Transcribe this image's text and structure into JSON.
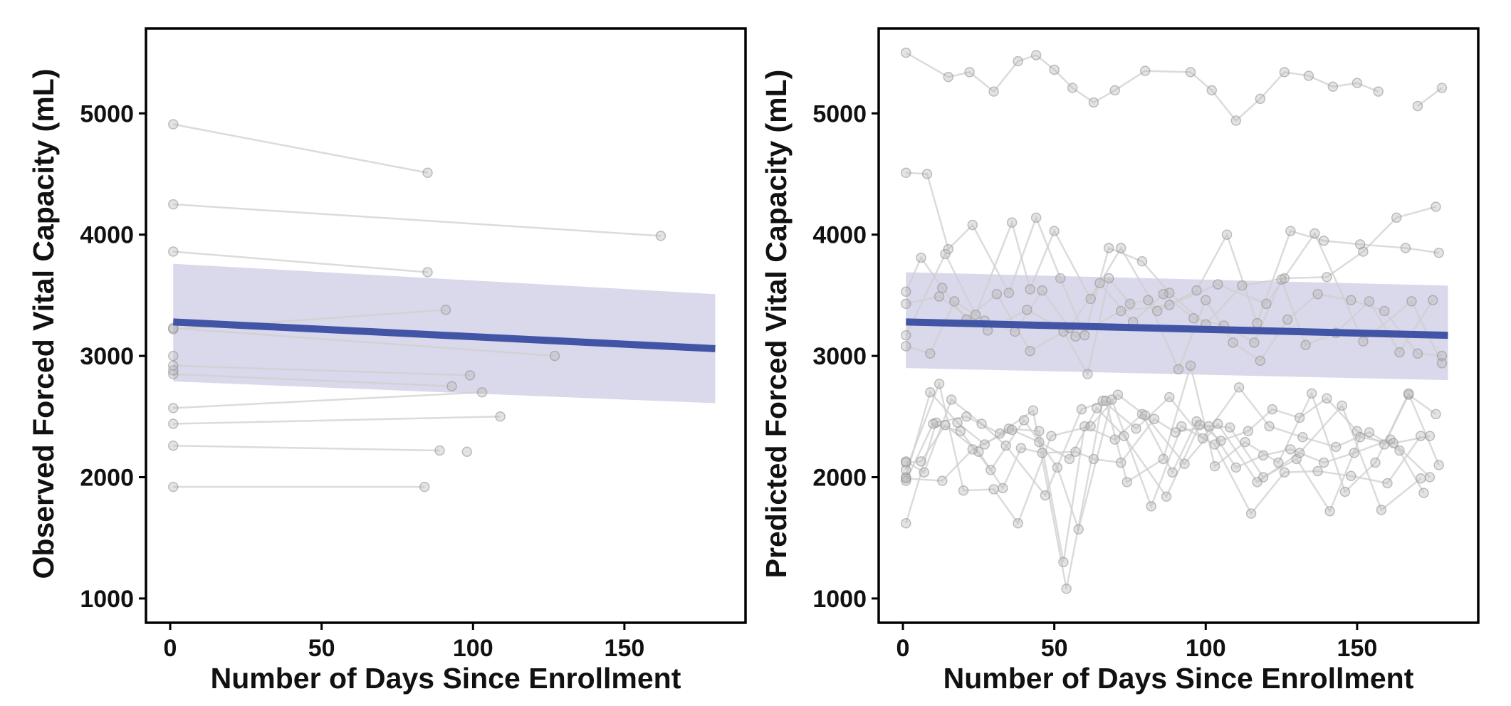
{
  "colors": {
    "trend": "#4254a5",
    "band": "#cfcde6",
    "subject": "#b5b5b5"
  },
  "chart_data": [
    {
      "type": "line",
      "panel": "left",
      "xlabel": "Number of Days Since Enrollment",
      "ylabel": "Observed Forced Vital Capacity (mL)",
      "xlim": [
        -8,
        190
      ],
      "ylim": [
        800,
        5700
      ],
      "xticks": [
        "0",
        "50",
        "100",
        "150"
      ],
      "yticks": [
        "1000",
        "2000",
        "3000",
        "4000",
        "5000"
      ],
      "trend": {
        "x": [
          1,
          180
        ],
        "y": [
          3280,
          3060
        ],
        "lower": [
          2790,
          2610
        ],
        "upper": [
          3760,
          3510
        ]
      },
      "subjects": [
        {
          "x": [
            1,
            85
          ],
          "y": [
            4910,
            4510
          ]
        },
        {
          "x": [
            1,
            162
          ],
          "y": [
            4250,
            3990
          ]
        },
        {
          "x": [
            1,
            85
          ],
          "y": [
            3860,
            3690
          ]
        },
        {
          "x": [
            1,
            91
          ],
          "y": [
            3220,
            3380
          ]
        },
        {
          "x": [
            1,
            127
          ],
          "y": [
            3230,
            3000
          ]
        },
        {
          "x": [
            1,
            99
          ],
          "y": [
            2920,
            2840
          ]
        },
        {
          "x": [
            1,
            93
          ],
          "y": [
            2850,
            2750
          ]
        },
        {
          "x": [
            1,
            103
          ],
          "y": [
            2570,
            2700
          ]
        },
        {
          "x": [
            1,
            109
          ],
          "y": [
            2440,
            2500
          ]
        },
        {
          "x": [
            1,
            89
          ],
          "y": [
            2260,
            2220
          ]
        },
        {
          "x": [
            98
          ],
          "y": [
            2210
          ]
        },
        {
          "x": [
            1,
            84
          ],
          "y": [
            1920,
            1920
          ]
        },
        {
          "x": [
            1
          ],
          "y": [
            3000
          ]
        },
        {
          "x": [
            1
          ],
          "y": [
            2880
          ]
        }
      ]
    },
    {
      "type": "line",
      "panel": "right",
      "xlabel": "Number of Days Since Enrollment",
      "ylabel": "Predicted Forced Vital Capacity (mL)",
      "xlim": [
        -8,
        190
      ],
      "ylim": [
        800,
        5700
      ],
      "xticks": [
        "0",
        "50",
        "100",
        "150"
      ],
      "yticks": [
        "1000",
        "2000",
        "3000",
        "4000",
        "5000"
      ],
      "trend": {
        "x": [
          1,
          180
        ],
        "y": [
          3280,
          3170
        ],
        "lower": [
          2900,
          2800
        ],
        "upper": [
          3690,
          3580
        ]
      },
      "subjects": [
        {
          "x": [
            1,
            15,
            22,
            30,
            38,
            44,
            50,
            56,
            63,
            70,
            80,
            95,
            102,
            110,
            118,
            126,
            134,
            142,
            150,
            157
          ],
          "y": [
            5500,
            5300,
            5340,
            5180,
            5430,
            5480,
            5360,
            5210,
            5090,
            5190,
            5350,
            5340,
            5190,
            4940,
            5120,
            5340,
            5310,
            5220,
            5250,
            5180
          ]
        },
        {
          "x": [
            170,
            178
          ],
          "y": [
            5060,
            5210
          ]
        },
        {
          "x": [
            1,
            8,
            15,
            23,
            35,
            44,
            52,
            60,
            68,
            79,
            88,
            100,
            112,
            126,
            140,
            152,
            163,
            176
          ],
          "y": [
            4510,
            4500,
            3880,
            4080,
            3520,
            4140,
            3640,
            3170,
            3890,
            3780,
            3520,
            3260,
            3580,
            3640,
            3650,
            3860,
            4140,
            4230
          ]
        },
        {
          "x": [
            1,
            14,
            24,
            36,
            42,
            50,
            62,
            72,
            84,
            97,
            107,
            117,
            128,
            139,
            151,
            166,
            177
          ],
          "y": [
            3170,
            3840,
            3340,
            4100,
            3550,
            4030,
            3470,
            3890,
            3370,
            3540,
            4000,
            3270,
            4030,
            3950,
            3920,
            3890,
            3850
          ]
        },
        {
          "x": [
            1,
            6,
            13,
            21,
            31,
            42,
            53,
            61,
            68,
            75,
            81,
            91,
            100,
            109,
            118,
            127,
            137,
            148,
            159,
            170,
            178
          ],
          "y": [
            3530,
            3810,
            3560,
            3300,
            3510,
            3040,
            3200,
            2850,
            3640,
            3430,
            3460,
            2890,
            3460,
            3110,
            2960,
            3300,
            3510,
            3460,
            3370,
            3020,
            3000
          ]
        },
        {
          "x": [
            1,
            9,
            17,
            27,
            37,
            46,
            55,
            65,
            76,
            86,
            96,
            106,
            116,
            125,
            133,
            143,
            154,
            164,
            175
          ],
          "y": [
            3080,
            3020,
            3450,
            3290,
            3200,
            3540,
            3230,
            3600,
            3280,
            3510,
            3310,
            3250,
            3110,
            3630,
            3090,
            3190,
            3450,
            3030,
            3460
          ]
        },
        {
          "x": [
            1,
            12,
            28,
            41,
            57,
            72,
            88,
            104,
            120,
            136,
            152,
            168,
            178
          ],
          "y": [
            3430,
            3490,
            3210,
            3380,
            3160,
            3370,
            3420,
            3590,
            3430,
            4010,
            3120,
            3450,
            2940
          ]
        },
        {
          "x": [
            1,
            9,
            18,
            27,
            35,
            45,
            53,
            60,
            70,
            79,
            89,
            97,
            105,
            114,
            122,
            131,
            140,
            150,
            159,
            167,
            176
          ],
          "y": [
            2000,
            2700,
            2450,
            2270,
            2400,
            2380,
            1300,
            2420,
            2310,
            2520,
            2040,
            2460,
            2300,
            2380,
            2560,
            2490,
            2650,
            2380,
            2270,
            2680,
            2520
          ]
        },
        {
          "x": [
            1,
            11,
            21,
            32,
            43,
            54,
            66,
            77,
            88,
            99,
            111,
            121,
            132,
            143,
            154,
            164,
            172
          ],
          "y": [
            1620,
            2450,
            2500,
            2360,
            2550,
            1080,
            2630,
            2400,
            2660,
            2320,
            2740,
            2420,
            2330,
            2250,
            2370,
            2220,
            1870
          ]
        },
        {
          "x": [
            1,
            7,
            16,
            26,
            34,
            47,
            59,
            67,
            74,
            86,
            95,
            103,
            113,
            124,
            135,
            146,
            156,
            167,
            177
          ],
          "y": [
            2130,
            2040,
            2640,
            2440,
            2260,
            1850,
            2560,
            2630,
            1960,
            2150,
            2920,
            2090,
            2290,
            2120,
            2690,
            1880,
            2120,
            2690,
            2100
          ]
        },
        {
          "x": [
            1,
            10,
            19,
            29,
            40,
            51,
            58,
            69,
            82,
            92,
            103,
            115,
            126,
            137,
            148,
            160,
            171
          ],
          "y": [
            1970,
            2440,
            2380,
            2060,
            2470,
            2080,
            1570,
            2640,
            1760,
            2420,
            2270,
            1700,
            2040,
            2050,
            2010,
            1950,
            2340
          ]
        },
        {
          "x": [
            1,
            6,
            14,
            25,
            33,
            39,
            46,
            57,
            63,
            72,
            83,
            90,
            101,
            110,
            119,
            128,
            139,
            149,
            161,
            174
          ],
          "y": [
            2120,
            2130,
            2430,
            2210,
            1910,
            2240,
            2200,
            2210,
            2150,
            2120,
            2480,
            2370,
            2420,
            2080,
            2180,
            2230,
            2120,
            2200,
            2310,
            2000
          ]
        },
        {
          "x": [
            1,
            13,
            23,
            36,
            45,
            55,
            64,
            73,
            87,
            98,
            108,
            119,
            130,
            141,
            151,
            162,
            174
          ],
          "y": [
            1990,
            1970,
            2230,
            2390,
            2290,
            2150,
            2570,
            2340,
            1840,
            2430,
            2410,
            2000,
            2150,
            1720,
            2330,
            2280,
            2340
          ]
        },
        {
          "x": [
            1,
            12,
            20,
            30,
            38,
            49,
            62,
            71,
            80,
            93,
            104,
            117,
            131,
            145,
            158,
            171
          ],
          "y": [
            2060,
            2770,
            1890,
            1900,
            1620,
            2340,
            2420,
            2680,
            2510,
            2110,
            2440,
            1960,
            2200,
            2590,
            1730,
            1990
          ]
        }
      ]
    }
  ]
}
